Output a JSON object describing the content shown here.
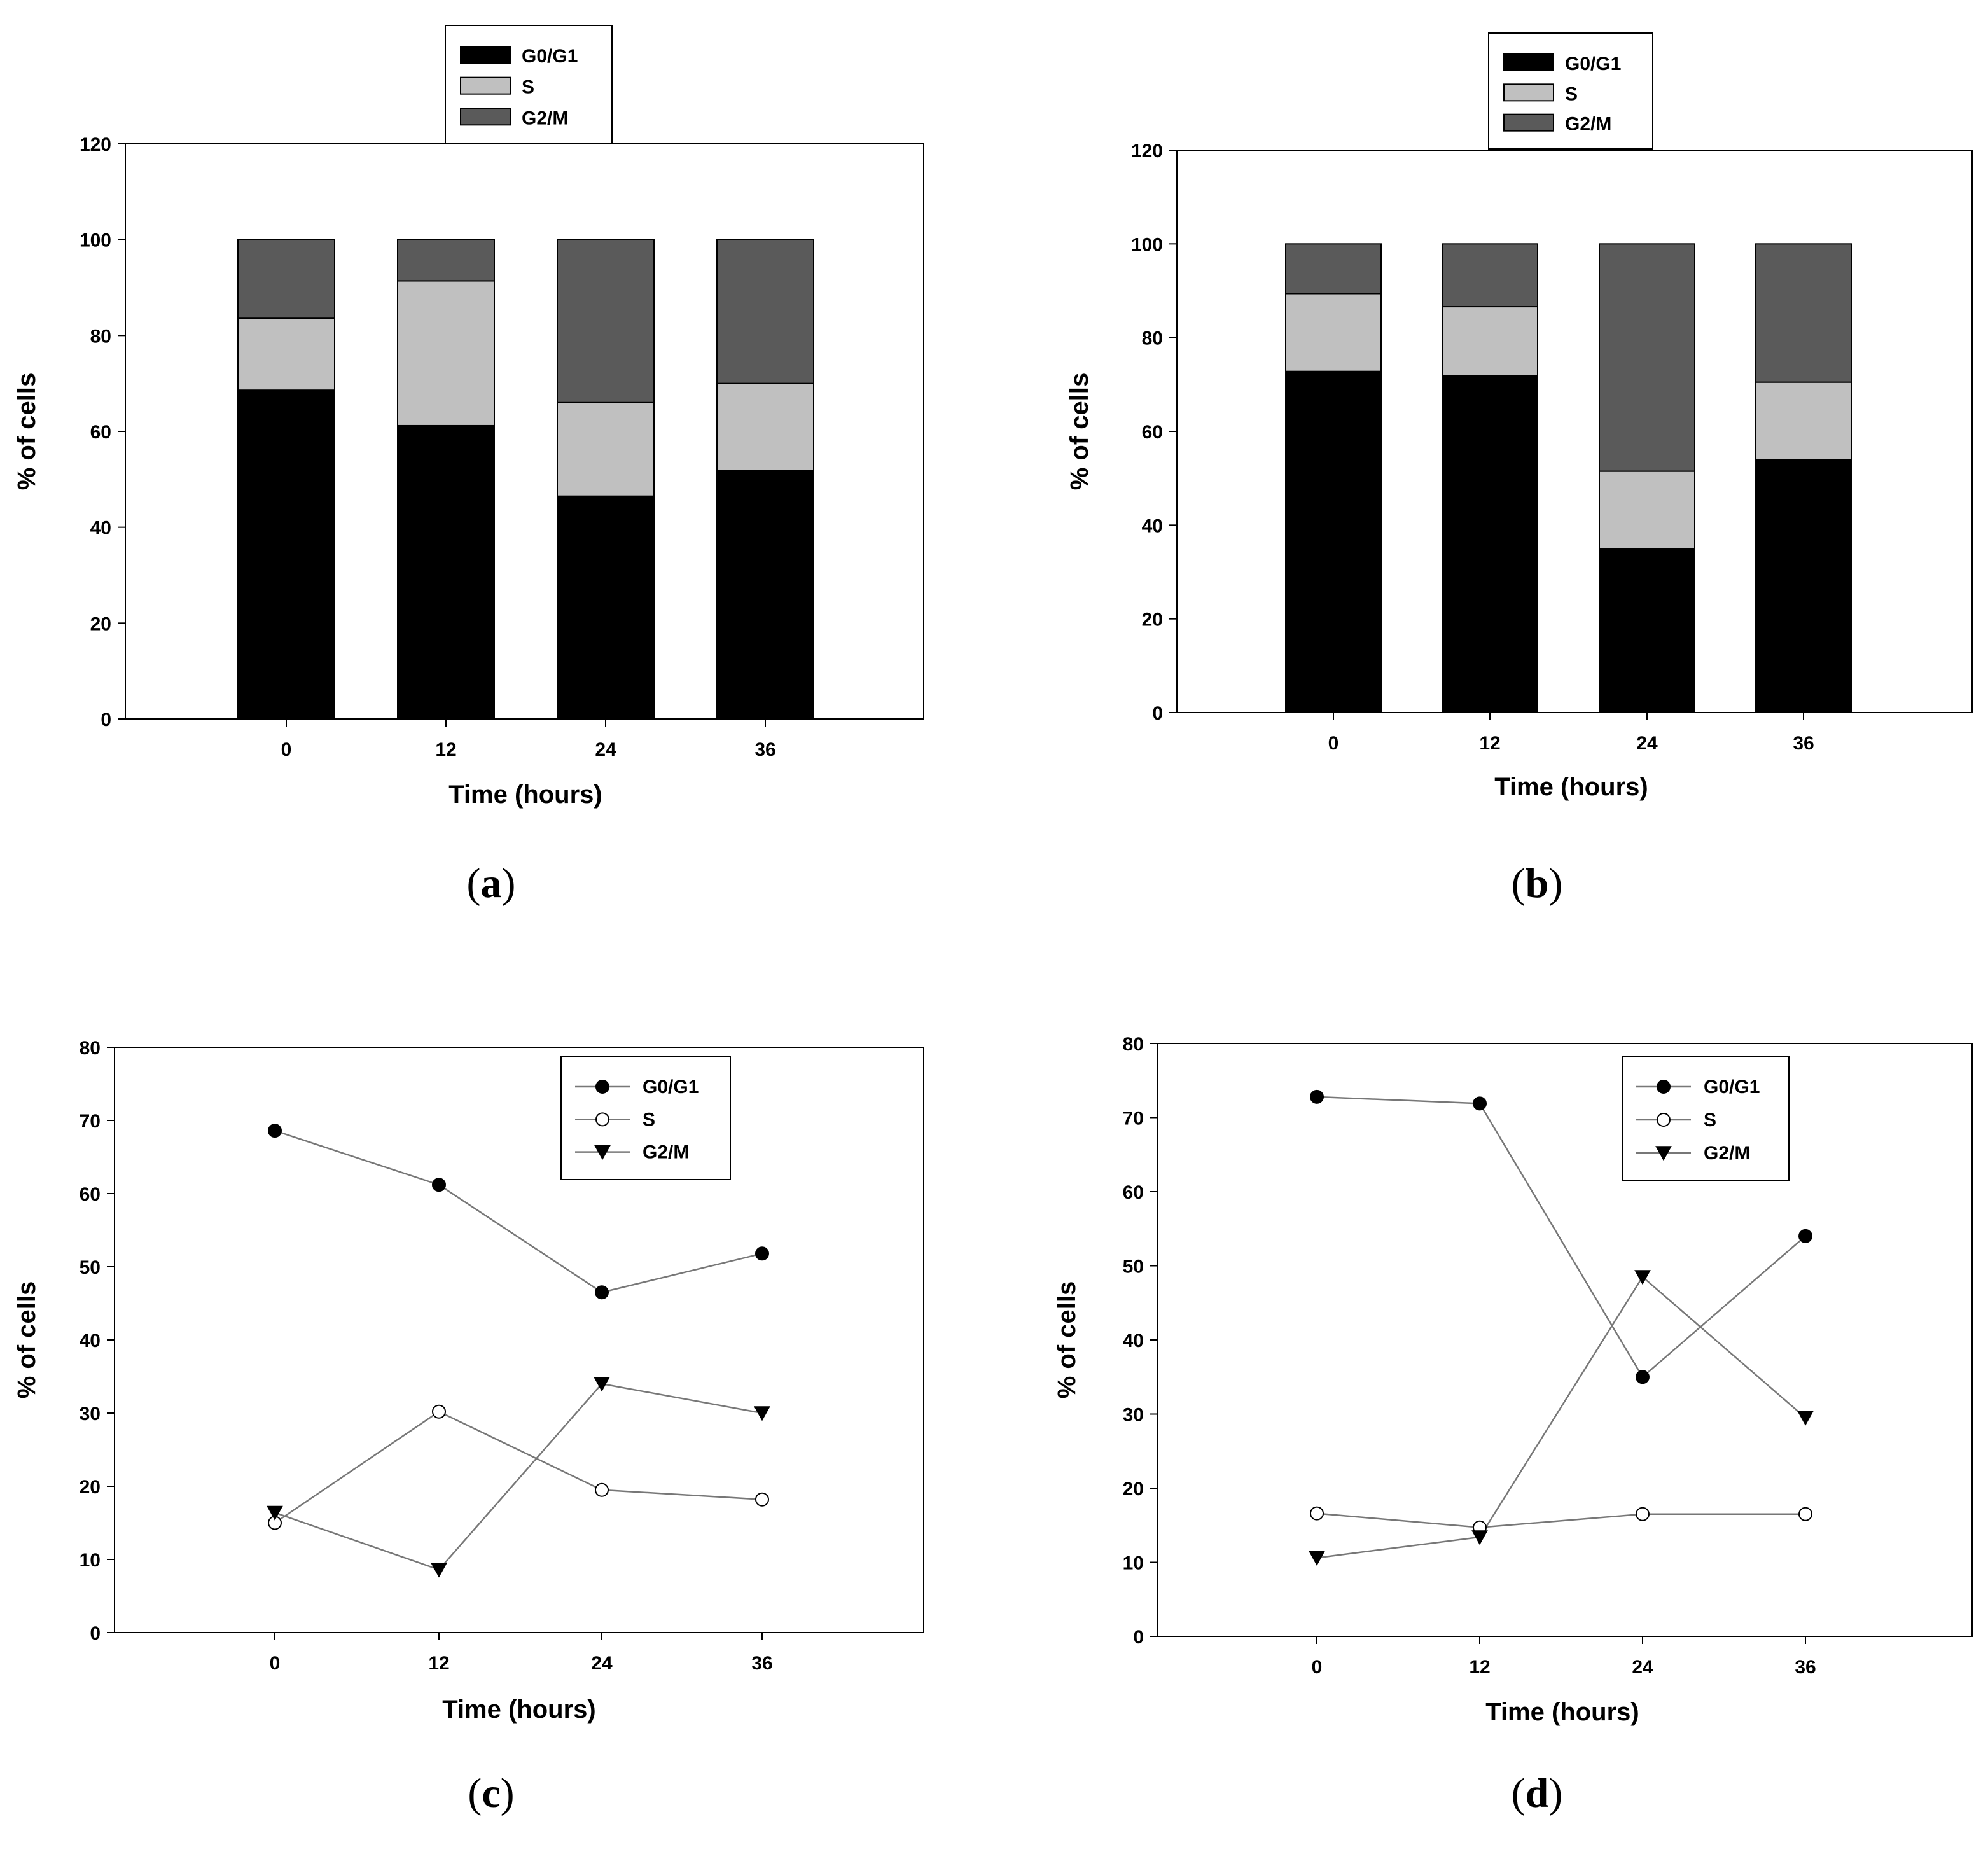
{
  "chart_data": [
    {
      "panel": "a",
      "type": "bar",
      "stacked": true,
      "categories": [
        "0",
        "12",
        "24",
        "36"
      ],
      "series": [
        {
          "name": "G0/G1",
          "color": "#000000",
          "values": [
            68.6,
            61.2,
            46.5,
            51.8
          ]
        },
        {
          "name": "S",
          "color": "#c0c0c0",
          "values": [
            15.0,
            30.2,
            19.5,
            18.2
          ]
        },
        {
          "name": "G2/M",
          "color": "#5a5a5a",
          "values": [
            16.4,
            8.6,
            34.0,
            30.0
          ]
        }
      ],
      "xlabel": "Time (hours)",
      "ylabel": "% of cells",
      "ylim": [
        0,
        120
      ],
      "yticks": [
        0,
        20,
        40,
        60,
        80,
        100,
        120
      ],
      "legend": "top-center",
      "grid": false
    },
    {
      "panel": "b",
      "type": "bar",
      "stacked": true,
      "categories": [
        "0",
        "12",
        "24",
        "36"
      ],
      "series": [
        {
          "name": "G0/G1",
          "color": "#000000",
          "values": [
            72.8,
            71.9,
            35.0,
            54.0
          ]
        },
        {
          "name": "S",
          "color": "#c0c0c0",
          "values": [
            16.6,
            14.7,
            16.5,
            16.5
          ]
        },
        {
          "name": "G2/M",
          "color": "#5a5a5a",
          "values": [
            10.6,
            13.4,
            48.5,
            29.5
          ]
        }
      ],
      "xlabel": "Time (hours)",
      "ylabel": "% of cells",
      "ylim": [
        0,
        120
      ],
      "yticks": [
        0,
        20,
        40,
        60,
        80,
        100,
        120
      ],
      "legend": "top-center",
      "grid": false
    },
    {
      "panel": "c",
      "type": "line",
      "x": [
        "0",
        "12",
        "24",
        "36"
      ],
      "series": [
        {
          "name": "G0/G1",
          "marker": "filled-circle",
          "values": [
            68.6,
            61.2,
            46.5,
            51.8
          ]
        },
        {
          "name": "S",
          "marker": "open-circle",
          "values": [
            15.0,
            30.2,
            19.5,
            18.2
          ]
        },
        {
          "name": "G2/M",
          "marker": "filled-triangle-down",
          "values": [
            16.4,
            8.6,
            34.0,
            30.0
          ]
        }
      ],
      "xlabel": "Time (hours)",
      "ylabel": "% of cells",
      "ylim": [
        0,
        80
      ],
      "yticks": [
        0,
        10,
        20,
        30,
        40,
        50,
        60,
        70,
        80
      ],
      "legend": "top-right",
      "grid": false
    },
    {
      "panel": "d",
      "type": "line",
      "x": [
        "0",
        "12",
        "24",
        "36"
      ],
      "series": [
        {
          "name": "G0/G1",
          "marker": "filled-circle",
          "values": [
            72.8,
            71.9,
            35.0,
            54.0
          ]
        },
        {
          "name": "S",
          "marker": "open-circle",
          "values": [
            16.6,
            14.7,
            16.5,
            16.5
          ]
        },
        {
          "name": "G2/M",
          "marker": "filled-triangle-down",
          "values": [
            10.6,
            13.4,
            48.5,
            29.5
          ]
        }
      ],
      "xlabel": "Time (hours)",
      "ylabel": "% of cells",
      "ylim": [
        0,
        80
      ],
      "yticks": [
        0,
        10,
        20,
        30,
        40,
        50,
        60,
        70,
        80
      ],
      "legend": "top-right",
      "grid": false
    }
  ],
  "panel_labels": [
    "a",
    "b",
    "c",
    "d"
  ]
}
